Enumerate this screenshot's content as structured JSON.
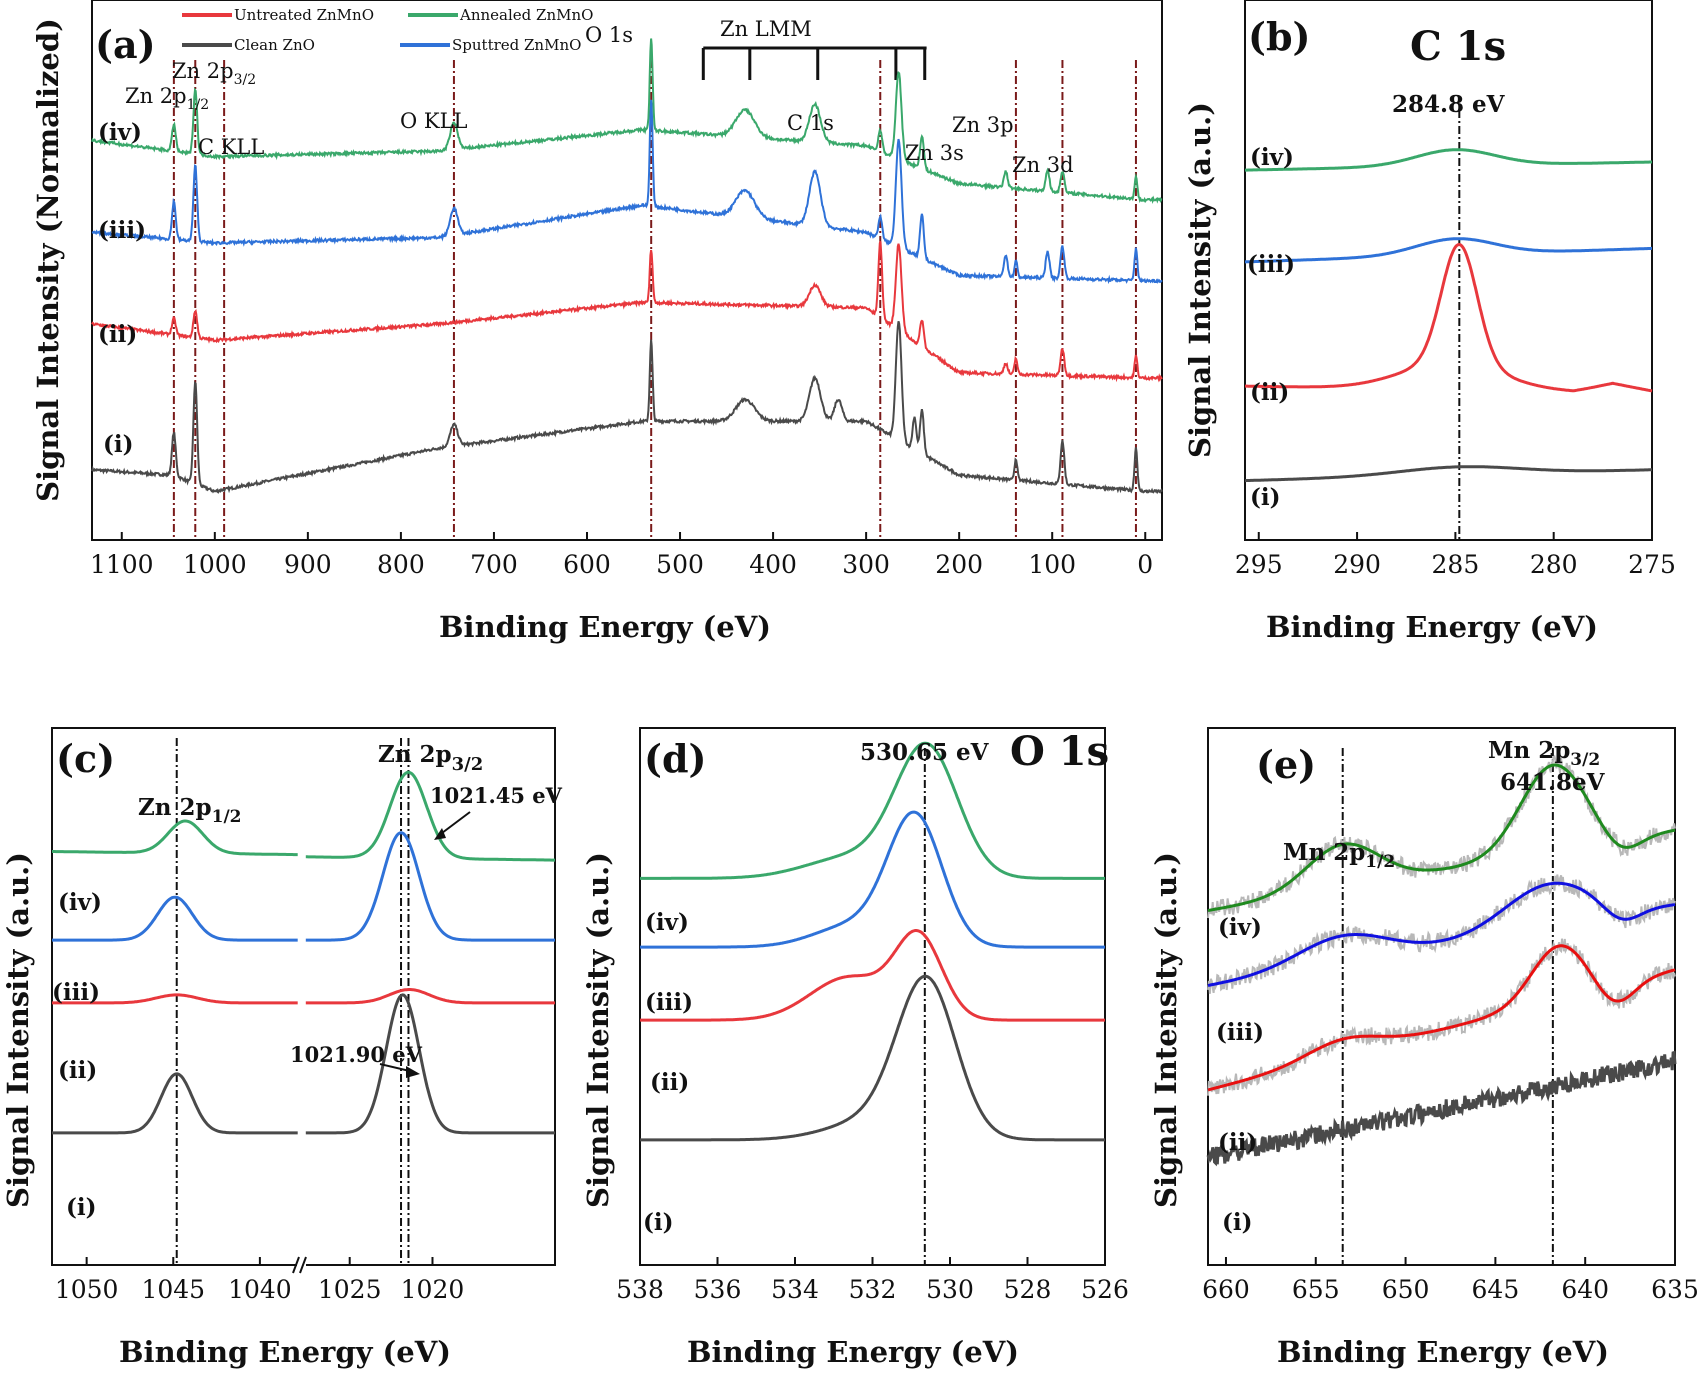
{
  "colors": {
    "untreated": "#e8383d",
    "annealed": "#3aa86b",
    "clean": "#4a4a4a",
    "sputtered": "#2f72d8",
    "raw": "#b8b8b8",
    "e_annealed": "#1f8a1f",
    "e_sputtered": "#1010e0",
    "e_untreated": "#e81010",
    "ref_line": "#7a1a1a"
  },
  "legend": [
    "Untreated ZnMnO",
    "Annealed ZnMnO",
    "Clean ZnO",
    "Sputtred ZnMnO"
  ],
  "series_labels": [
    "(i)",
    "(ii)",
    "(iii)",
    "(iv)"
  ],
  "chart_data": [
    {
      "panel": "(a)",
      "type": "line",
      "xlabel": "Binding Energy (eV)",
      "ylabel": "Signal Intensity (Normalized)",
      "xlim": [
        1132,
        -18
      ],
      "ylim": [
        0,
        100
      ],
      "xticks": [
        1100,
        1000,
        900,
        800,
        700,
        600,
        500,
        400,
        300,
        200,
        100,
        0
      ],
      "grid": false,
      "ref_lines": [
        1044,
        1021,
        990,
        743,
        531,
        284.8,
        139,
        89,
        10
      ],
      "annotations": [
        {
          "text": "Zn 2p",
          "sub": "3/2"
        },
        {
          "text": "Zn 2p",
          "sub": "1/2"
        },
        {
          "text": "C KLL"
        },
        {
          "text": "O KLL"
        },
        {
          "text": "O 1s"
        },
        {
          "text": "Zn LMM"
        },
        {
          "text": "C 1s"
        },
        {
          "text": "Zn 3s"
        },
        {
          "text": "Zn 3p"
        },
        {
          "text": "Zn 3d"
        }
      ],
      "bracket": {
        "from": 475,
        "to": 235,
        "ticks": [
          475,
          425,
          352,
          268,
          237
        ]
      },
      "series": [
        {
          "name": "Clean ZnO",
          "label": "(i)",
          "color": "#4a4a4a",
          "base": [
            [
              1132,
              13
            ],
            [
              1045,
              12
            ],
            [
              1000,
              9
            ],
            [
              760,
              17
            ],
            [
              540,
              22
            ],
            [
              300,
              22
            ],
            [
              200,
              12
            ],
            [
              0,
              9
            ],
            [
              -18,
              9
            ]
          ],
          "peaks": [
            [
              1044,
              8,
              2
            ],
            [
              1021,
              19,
              2
            ],
            [
              743,
              4,
              4
            ],
            [
              531,
              15,
              1.5
            ],
            [
              430,
              4,
              10
            ],
            [
              355,
              8,
              6
            ],
            [
              330,
              4,
              4
            ],
            [
              265,
              22,
              3
            ],
            [
              248,
              6,
              2
            ],
            [
              240,
              8,
              2
            ],
            [
              139,
              4,
              1.5
            ],
            [
              89,
              8,
              2
            ],
            [
              10,
              8,
              1.5
            ]
          ]
        },
        {
          "name": "Untreated ZnMnO",
          "label": "(ii)",
          "color": "#e8383d",
          "base": [
            [
              1132,
              40
            ],
            [
              1000,
              37
            ],
            [
              760,
              40
            ],
            [
              540,
              44
            ],
            [
              300,
              43
            ],
            [
              200,
              31
            ],
            [
              0,
              30
            ],
            [
              -18,
              30
            ]
          ],
          "peaks": [
            [
              1044,
              3,
              2
            ],
            [
              1021,
              5,
              2
            ],
            [
              531,
              10,
              1.5
            ],
            [
              355,
              4,
              6
            ],
            [
              284.8,
              14,
              2
            ],
            [
              265,
              16,
              3
            ],
            [
              240,
              5,
              2
            ],
            [
              150,
              2,
              2
            ],
            [
              139,
              3,
              1.5
            ],
            [
              89,
              5,
              2
            ],
            [
              10,
              4,
              1.5
            ]
          ]
        },
        {
          "name": "Sputtred ZnMnO",
          "label": "(iii)",
          "color": "#2f72d8",
          "base": [
            [
              1132,
              57
            ],
            [
              1000,
              55
            ],
            [
              760,
              56
            ],
            [
              540,
              62
            ],
            [
              300,
              57
            ],
            [
              200,
              49
            ],
            [
              0,
              48
            ],
            [
              -18,
              48
            ]
          ],
          "peaks": [
            [
              1044,
              7,
              2
            ],
            [
              1021,
              14,
              2
            ],
            [
              743,
              5,
              4
            ],
            [
              531,
              20,
              1.5
            ],
            [
              430,
              5,
              10
            ],
            [
              355,
              10,
              6
            ],
            [
              284.8,
              4,
              2
            ],
            [
              265,
              20,
              3
            ],
            [
              240,
              8,
              2
            ],
            [
              150,
              4,
              2
            ],
            [
              139,
              3,
              1.5
            ],
            [
              105,
              5,
              2
            ],
            [
              89,
              6,
              2
            ],
            [
              10,
              6,
              1.5
            ]
          ]
        },
        {
          "name": "Annealed ZnMnO",
          "label": "(iv)",
          "color": "#3aa86b",
          "base": [
            [
              1132,
              74
            ],
            [
              1000,
              71
            ],
            [
              760,
              72
            ],
            [
              540,
              76
            ],
            [
              300,
              73
            ],
            [
              200,
              66
            ],
            [
              0,
              63
            ],
            [
              -18,
              63
            ]
          ],
          "peaks": [
            [
              1044,
              5,
              2
            ],
            [
              1021,
              12,
              2
            ],
            [
              743,
              5,
              4
            ],
            [
              531,
              17,
              1.5
            ],
            [
              430,
              5,
              10
            ],
            [
              355,
              7,
              6
            ],
            [
              284.8,
              4,
              2
            ],
            [
              265,
              16,
              3
            ],
            [
              240,
              6,
              2
            ],
            [
              150,
              3,
              2
            ],
            [
              105,
              4,
              2
            ],
            [
              89,
              4,
              2
            ],
            [
              10,
              4,
              1.5
            ]
          ]
        }
      ]
    },
    {
      "panel": "(b)",
      "title": "C 1s",
      "type": "line",
      "xlabel": "Binding Energy (eV)",
      "ylabel": "Signal Intensity (a.u.)",
      "xlim": [
        295.7,
        275
      ],
      "ylim": [
        0,
        100
      ],
      "xticks": [
        295,
        290,
        285,
        280,
        275
      ],
      "ref_lines": [
        284.8
      ],
      "annotations": [
        {
          "text": "284.8 eV"
        }
      ],
      "series": [
        {
          "label": "(i)",
          "color": "#4a4a4a",
          "base": [
            [
              295.7,
              11
            ],
            [
              275,
              13
            ]
          ],
          "peaks": [
            [
              284.8,
              1.5,
              3
            ]
          ]
        },
        {
          "label": "(ii)",
          "color": "#e8383d",
          "base": [
            [
              295.7,
              28.5
            ],
            [
              279,
              27.4
            ],
            [
              277,
              29
            ],
            [
              275,
              27.6
            ]
          ],
          "peaks": [
            [
              284.8,
              22,
              0.9
            ],
            [
              285.2,
              5,
              2.5
            ]
          ]
        },
        {
          "label": "(iii)",
          "color": "#2f72d8",
          "base": [
            [
              295.7,
              51.5
            ],
            [
              275,
              54
            ]
          ],
          "peaks": [
            [
              285,
              3,
              2
            ]
          ]
        },
        {
          "label": "(iv)",
          "color": "#3aa86b",
          "base": [
            [
              295.7,
              68.5
            ],
            [
              275,
              70
            ]
          ],
          "peaks": [
            [
              285,
              3,
              2
            ]
          ]
        }
      ]
    },
    {
      "panel": "(c)",
      "type": "line",
      "xlabel": "Binding Energy (eV)",
      "ylabel": "Signal Intensity (a.u.)",
      "xlim": [
        1052,
        1012.6
      ],
      "axis_break": [
        1037.8,
        1027.7
      ],
      "ylim": [
        0,
        100
      ],
      "xticks": [
        1050,
        1045,
        1040,
        1025,
        1020
      ],
      "ref_lines": [
        1044.8,
        1021.9,
        1021.45
      ],
      "annotations": [
        {
          "text": "Zn 2p",
          "sub": "3/2"
        },
        {
          "text": "1021.45 eV"
        },
        {
          "text": "Zn 2p",
          "sub": "1/2"
        },
        {
          "text": "1021.90 eV"
        }
      ],
      "series": [
        {
          "label": "(i)",
          "color": "#4a4a4a",
          "base": [
            [
              1052,
              24.6
            ],
            [
              1012.6,
              24.6
            ]
          ],
          "peaks": [
            [
              1044.8,
              11,
              0.9
            ],
            [
              1021.8,
              25.7,
              1.0
            ]
          ]
        },
        {
          "label": "(ii)",
          "color": "#e8383d",
          "base": [
            [
              1052,
              48.8
            ],
            [
              1012.6,
              48.8
            ]
          ],
          "peaks": [
            [
              1044.8,
              1.5,
              1.2
            ],
            [
              1021.4,
              2.5,
              1.2
            ]
          ]
        },
        {
          "label": "(iii)",
          "color": "#2f72d8",
          "base": [
            [
              1052,
              60.5
            ],
            [
              1012.6,
              60.5
            ]
          ],
          "peaks": [
            [
              1044.9,
              8,
              1
            ],
            [
              1021.9,
              20,
              1.1
            ]
          ]
        },
        {
          "label": "(iv)",
          "color": "#3aa86b",
          "base": [
            [
              1052,
              77
            ],
            [
              1012.6,
              75.4
            ]
          ],
          "peaks": [
            [
              1044.3,
              6,
              1
            ],
            [
              1021.45,
              16,
              1.1
            ]
          ]
        }
      ]
    },
    {
      "panel": "(d)",
      "title": "O 1s",
      "type": "line",
      "xlabel": "Binding Energy (eV)",
      "ylabel": "Signal Intensity (a.u.)",
      "xlim": [
        538,
        526
      ],
      "ylim": [
        0,
        100
      ],
      "xticks": [
        538,
        536,
        534,
        532,
        530,
        528,
        526
      ],
      "ref_lines": [
        530.65
      ],
      "annotations": [
        {
          "text": "530.65 eV"
        }
      ],
      "series": [
        {
          "label": "(i)",
          "color": "#4a4a4a",
          "base": [
            [
              538,
              23.3
            ],
            [
              526,
              23.3
            ]
          ],
          "peaks": [
            [
              530.6,
              28,
              0.75
            ],
            [
              531.8,
              4,
              1.2
            ]
          ]
        },
        {
          "label": "(ii)",
          "color": "#e8383d",
          "base": [
            [
              538,
              45.6
            ],
            [
              526,
              45.6
            ]
          ],
          "peaks": [
            [
              530.8,
              15,
              0.6
            ],
            [
              532.6,
              8,
              1
            ]
          ]
        },
        {
          "label": "(iii)",
          "color": "#2f72d8",
          "base": [
            [
              538,
              59.2
            ],
            [
              526,
              59.2
            ]
          ],
          "peaks": [
            [
              530.9,
              24,
              0.7
            ],
            [
              532.5,
              4,
              1
            ]
          ]
        },
        {
          "label": "(iv)",
          "color": "#3aa86b",
          "base": [
            [
              538,
              72
            ],
            [
              526,
              72
            ]
          ],
          "peaks": [
            [
              530.6,
              24,
              0.8
            ],
            [
              532.5,
              4,
              1.2
            ]
          ]
        }
      ]
    },
    {
      "panel": "(e)",
      "type": "line",
      "xlabel": "Binding Energy (eV)",
      "ylabel": "Signal Intensity (a.u.)",
      "xlim": [
        661,
        635
      ],
      "ylim": [
        0,
        100
      ],
      "xticks": [
        660,
        655,
        650,
        645,
        640,
        635
      ],
      "ref_lines": [
        653.5,
        641.8
      ],
      "annotations": [
        {
          "text": "Mn 2p",
          "sub": "3/2"
        },
        {
          "text": "641.8eV"
        },
        {
          "text": "Mn 2p",
          "sub": "1/2"
        }
      ],
      "series": [
        {
          "label": "(i)",
          "color": "#4a4a4a",
          "raw": false,
          "noise": 1.6,
          "base": [
            [
              661,
              20
            ],
            [
              635,
              38
            ]
          ],
          "peaks": []
        },
        {
          "label": "(ii)",
          "color": "#e81010",
          "raw": true,
          "noise": 1.5,
          "base": [
            [
              661,
              32.6
            ],
            [
              635,
              55
            ]
          ],
          "peaks": [
            [
              653.5,
              3,
              2
            ],
            [
              641.5,
              10,
              1.5
            ],
            [
              638.3,
              -4,
              1
            ]
          ]
        },
        {
          "label": "(iii)",
          "color": "#1010e0",
          "raw": true,
          "noise": 1.5,
          "base": [
            [
              661,
              52
            ],
            [
              635,
              67
            ]
          ],
          "peaks": [
            [
              653.5,
              5,
              2.5
            ],
            [
              642,
              8,
              2.5
            ],
            [
              638,
              -3,
              1
            ]
          ]
        },
        {
          "label": "(iv)",
          "color": "#1f8a1f",
          "raw": true,
          "noise": 1.5,
          "base": [
            [
              661,
              66
            ],
            [
              635,
              81
            ]
          ],
          "peaks": [
            [
              653.5,
              8,
              2
            ],
            [
              641.8,
              16,
              1.8
            ],
            [
              638,
              -3,
              1
            ]
          ]
        }
      ]
    }
  ]
}
